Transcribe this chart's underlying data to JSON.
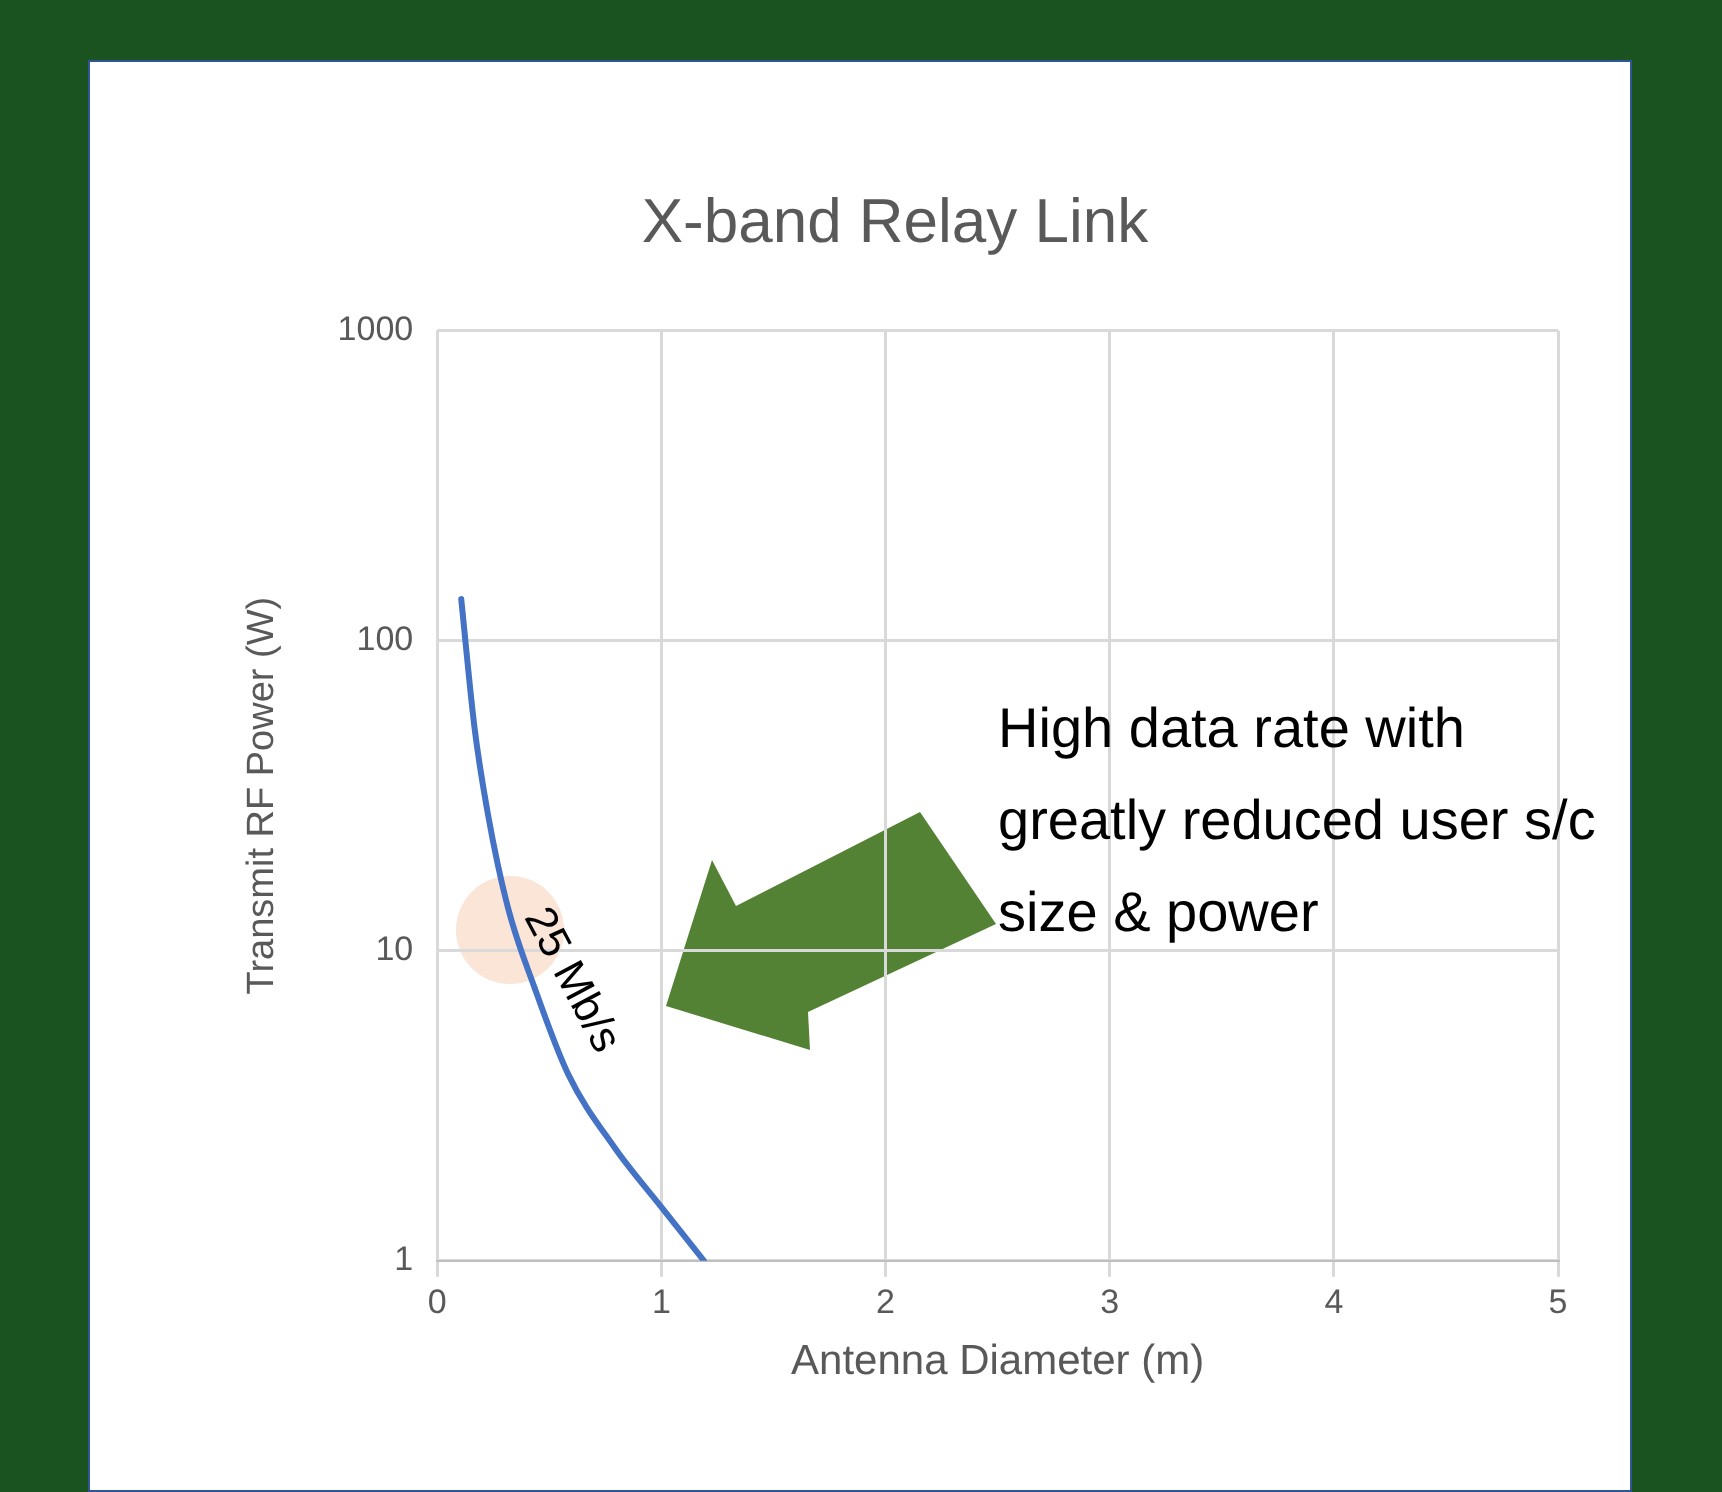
{
  "chart_data": {
    "type": "line",
    "title": "X-band Relay Link",
    "xlabel": "Antenna Diameter (m)",
    "ylabel": "Transmit RF Power (W)",
    "series": [
      {
        "color": "#4472c4",
        "x": [
          0.107,
          0.166,
          0.226,
          0.315,
          0.434,
          0.584,
          0.791,
          1.0,
          1.19
        ],
        "values": [
          136,
          52.6,
          27.6,
          13.8,
          7.6,
          4.0,
          2.32,
          1.49,
          1.0
        ]
      }
    ],
    "xlim": [
      0,
      5
    ],
    "xticks": [
      0,
      1,
      2,
      3,
      4,
      5
    ],
    "ylim": [
      1,
      1000
    ],
    "yticks": [
      1,
      10,
      100,
      1000
    ],
    "log": "y",
    "grid": true,
    "legend": false,
    "marker": "none",
    "line_style": "solid",
    "annotations": [
      "25 Mb/s",
      "High data rate with greatly reduced user s/c size & power"
    ]
  }
}
